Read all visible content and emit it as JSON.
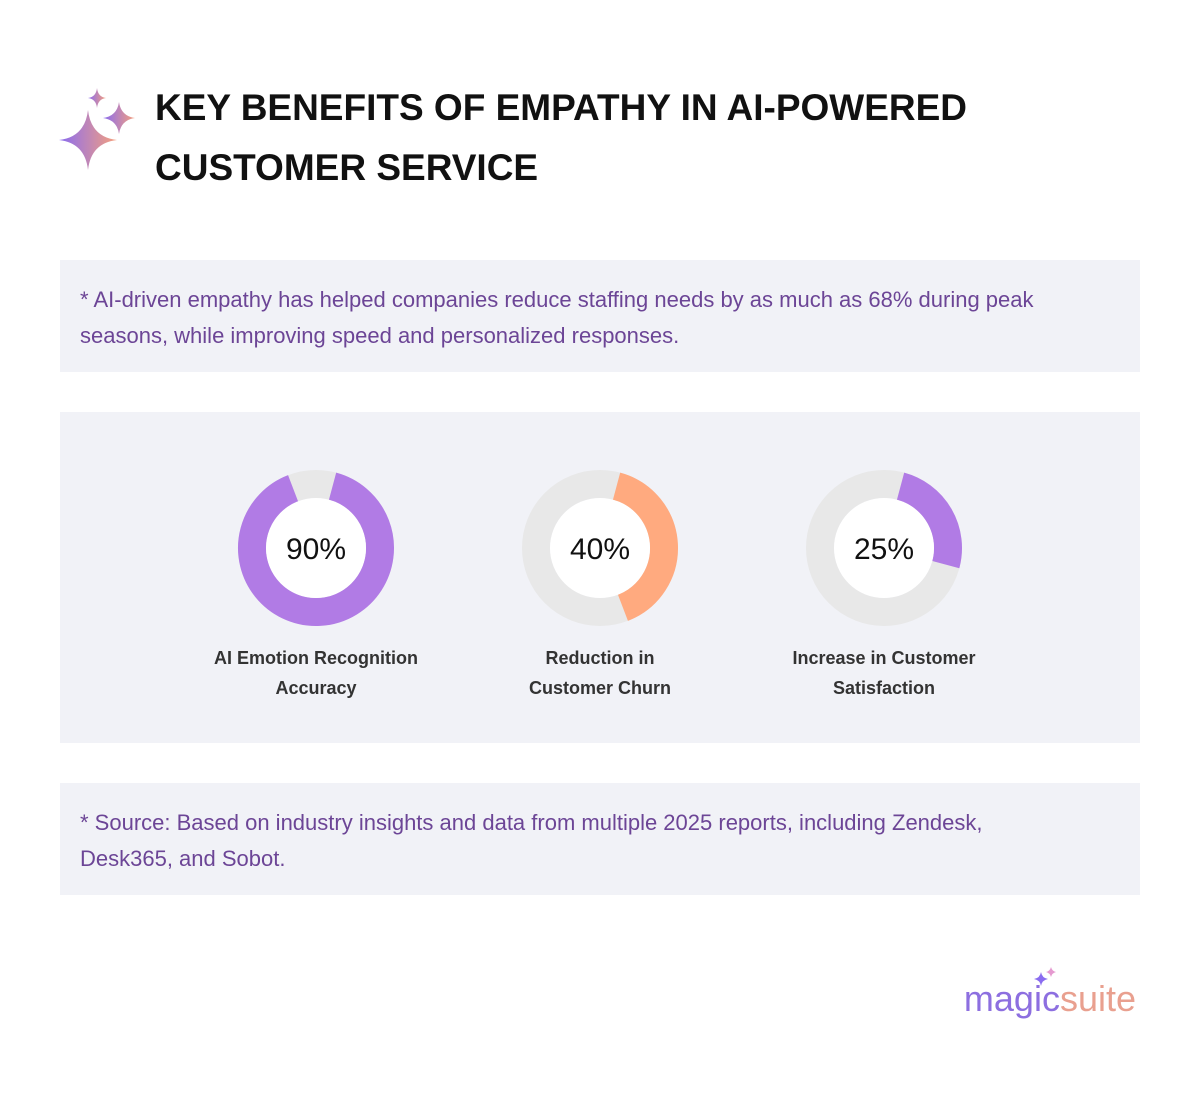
{
  "header": {
    "title": "KEY BENEFITS OF EMPATHY IN AI-POWERED\nCUSTOMER SERVICE"
  },
  "notes": [
    "* AI-driven empathy has helped companies reduce staffing needs by as much as 68% during peak seasons, while improving speed and personalized responses.",
    "* Source: Based on industry insights and data from multiple 2025 reports, including Zendesk, Desk365, and Sobot."
  ],
  "chart_data": [
    {
      "type": "donut",
      "title": "AI Emotion Recognition\nAccuracy",
      "values": [
        90
      ],
      "value_labels": [
        "90%"
      ],
      "color": "#b17be5"
    },
    {
      "type": "donut",
      "title": "Reduction in\nCustomer Churn",
      "values": [
        40
      ],
      "value_labels": [
        "40%"
      ],
      "color": "#ffaa7f"
    },
    {
      "type": "donut",
      "title": "Increase in Customer\nSatisfaction",
      "values": [
        25
      ],
      "value_labels": [
        "25%"
      ],
      "color": "#b17be5"
    }
  ],
  "footer": {
    "logo_left": "magic",
    "logo_right": "suite"
  }
}
